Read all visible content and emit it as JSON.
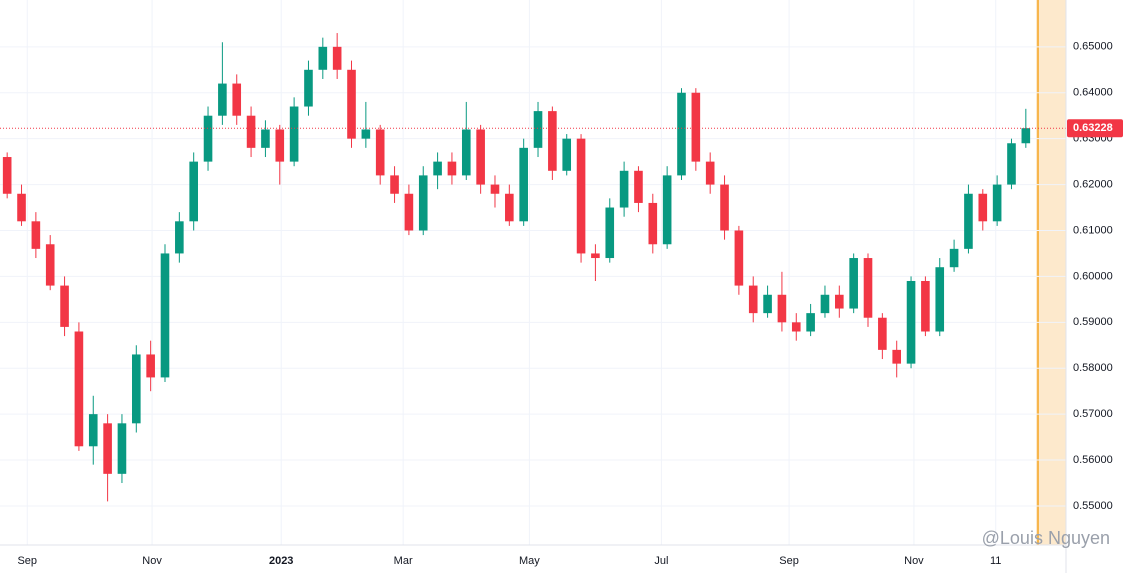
{
  "chart_data": {
    "type": "candlestick",
    "up_color": "#089981",
    "down_color": "#f23645",
    "grid": true,
    "ylim": [
      0.5415,
      0.6602
    ],
    "yticks": [
      {
        "value": 0.55,
        "label": "0.55000"
      },
      {
        "value": 0.56,
        "label": "0.56000"
      },
      {
        "value": 0.57,
        "label": "0.57000"
      },
      {
        "value": 0.58,
        "label": "0.58000"
      },
      {
        "value": 0.59,
        "label": "0.59000"
      },
      {
        "value": 0.6,
        "label": "0.60000"
      },
      {
        "value": 0.61,
        "label": "0.61000"
      },
      {
        "value": 0.62,
        "label": "0.62000"
      },
      {
        "value": 0.63,
        "label": "0.63000"
      },
      {
        "value": 0.64,
        "label": "0.64000"
      },
      {
        "value": 0.65,
        "label": "0.65000"
      }
    ],
    "xlim": [
      -0.5,
      73.8
    ],
    "xticks": [
      {
        "value": 1.4,
        "label": "Sep"
      },
      {
        "value": 10.1,
        "label": "Nov"
      },
      {
        "value": 19.1,
        "label": "2023"
      },
      {
        "value": 27.6,
        "label": "Mar"
      },
      {
        "value": 36.4,
        "label": "May"
      },
      {
        "value": 45.6,
        "label": "Jul"
      },
      {
        "value": 54.5,
        "label": "Sep"
      },
      {
        "value": 63.2,
        "label": "Nov"
      },
      {
        "value": 68.9,
        "label": "11"
      }
    ],
    "candles": [
      [
        0.626,
        0.627,
        0.617,
        0.618
      ],
      [
        0.618,
        0.62,
        0.611,
        0.612
      ],
      [
        0.612,
        0.614,
        0.604,
        0.606
      ],
      [
        0.607,
        0.609,
        0.597,
        0.598
      ],
      [
        0.598,
        0.6,
        0.587,
        0.589
      ],
      [
        0.588,
        0.59,
        0.562,
        0.563
      ],
      [
        0.563,
        0.574,
        0.559,
        0.57
      ],
      [
        0.568,
        0.57,
        0.551,
        0.557
      ],
      [
        0.557,
        0.57,
        0.555,
        0.568
      ],
      [
        0.568,
        0.585,
        0.566,
        0.583
      ],
      [
        0.583,
        0.586,
        0.575,
        0.578
      ],
      [
        0.578,
        0.607,
        0.577,
        0.605
      ],
      [
        0.605,
        0.614,
        0.603,
        0.612
      ],
      [
        0.612,
        0.627,
        0.61,
        0.625
      ],
      [
        0.625,
        0.637,
        0.623,
        0.635
      ],
      [
        0.635,
        0.651,
        0.633,
        0.642
      ],
      [
        0.642,
        0.644,
        0.633,
        0.635
      ],
      [
        0.635,
        0.637,
        0.626,
        0.628
      ],
      [
        0.628,
        0.634,
        0.626,
        0.632
      ],
      [
        0.632,
        0.633,
        0.62,
        0.625
      ],
      [
        0.625,
        0.639,
        0.624,
        0.637
      ],
      [
        0.637,
        0.647,
        0.635,
        0.645
      ],
      [
        0.645,
        0.652,
        0.643,
        0.65
      ],
      [
        0.65,
        0.653,
        0.643,
        0.645
      ],
      [
        0.645,
        0.647,
        0.628,
        0.63
      ],
      [
        0.63,
        0.638,
        0.628,
        0.632
      ],
      [
        0.632,
        0.633,
        0.62,
        0.622
      ],
      [
        0.622,
        0.624,
        0.616,
        0.618
      ],
      [
        0.618,
        0.62,
        0.609,
        0.61
      ],
      [
        0.61,
        0.624,
        0.609,
        0.622
      ],
      [
        0.622,
        0.627,
        0.619,
        0.625
      ],
      [
        0.625,
        0.627,
        0.62,
        0.622
      ],
      [
        0.622,
        0.638,
        0.621,
        0.632
      ],
      [
        0.632,
        0.633,
        0.618,
        0.62
      ],
      [
        0.62,
        0.622,
        0.615,
        0.618
      ],
      [
        0.618,
        0.62,
        0.611,
        0.612
      ],
      [
        0.612,
        0.63,
        0.611,
        0.628
      ],
      [
        0.628,
        0.638,
        0.626,
        0.636
      ],
      [
        0.636,
        0.637,
        0.621,
        0.623
      ],
      [
        0.623,
        0.631,
        0.622,
        0.63
      ],
      [
        0.63,
        0.631,
        0.603,
        0.605
      ],
      [
        0.605,
        0.607,
        0.599,
        0.604
      ],
      [
        0.604,
        0.617,
        0.603,
        0.615
      ],
      [
        0.615,
        0.625,
        0.613,
        0.623
      ],
      [
        0.623,
        0.624,
        0.614,
        0.616
      ],
      [
        0.616,
        0.618,
        0.605,
        0.607
      ],
      [
        0.607,
        0.624,
        0.606,
        0.622
      ],
      [
        0.622,
        0.641,
        0.621,
        0.64
      ],
      [
        0.64,
        0.641,
        0.623,
        0.625
      ],
      [
        0.625,
        0.627,
        0.618,
        0.62
      ],
      [
        0.62,
        0.622,
        0.608,
        0.61
      ],
      [
        0.61,
        0.611,
        0.596,
        0.598
      ],
      [
        0.598,
        0.6,
        0.59,
        0.592
      ],
      [
        0.592,
        0.598,
        0.591,
        0.596
      ],
      [
        0.596,
        0.601,
        0.588,
        0.59
      ],
      [
        0.59,
        0.592,
        0.586,
        0.588
      ],
      [
        0.588,
        0.594,
        0.587,
        0.592
      ],
      [
        0.592,
        0.598,
        0.591,
        0.596
      ],
      [
        0.596,
        0.598,
        0.591,
        0.593
      ],
      [
        0.593,
        0.605,
        0.592,
        0.604
      ],
      [
        0.604,
        0.605,
        0.589,
        0.591
      ],
      [
        0.591,
        0.592,
        0.582,
        0.584
      ],
      [
        0.584,
        0.586,
        0.578,
        0.581
      ],
      [
        0.581,
        0.6,
        0.58,
        0.599
      ],
      [
        0.599,
        0.6,
        0.587,
        0.588
      ],
      [
        0.588,
        0.604,
        0.587,
        0.602
      ],
      [
        0.602,
        0.608,
        0.601,
        0.606
      ],
      [
        0.606,
        0.62,
        0.605,
        0.618
      ],
      [
        0.618,
        0.619,
        0.61,
        0.612
      ],
      [
        0.612,
        0.622,
        0.611,
        0.62
      ],
      [
        0.62,
        0.63,
        0.619,
        0.629
      ],
      [
        0.629,
        0.6365,
        0.628,
        0.63228
      ]
    ],
    "last_price": {
      "value": 0.63228,
      "label": "0.63228"
    },
    "watermark": "@Louis Nguyen"
  }
}
